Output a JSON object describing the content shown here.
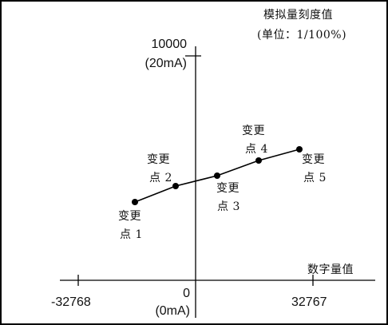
{
  "y_axis_title": {
    "line1": "模拟量刻度值",
    "line2": "(单位：1/100%)"
  },
  "x_axis_title": "数字量值",
  "y_top": {
    "value": "10000",
    "unit": "(20mA)"
  },
  "origin": {
    "value": "0",
    "unit": "(0mA)"
  },
  "x_min_label": "-32768",
  "x_max_label": "32767",
  "points": [
    {
      "line1": "变更",
      "line2": "点 1"
    },
    {
      "line1": "变更",
      "line2": "点 2"
    },
    {
      "line1": "变更",
      "line2": "点 3"
    },
    {
      "line1": "变更",
      "line2": "点 4"
    },
    {
      "line1": "变更",
      "line2": "点 5"
    }
  ]
}
